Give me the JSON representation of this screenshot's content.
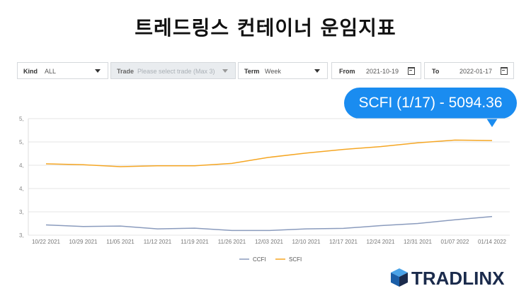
{
  "title": "트레드링스 컨테이너 운임지표",
  "filters": {
    "kind": {
      "label": "Kind",
      "value": "ALL"
    },
    "trade": {
      "label": "Trade",
      "placeholder": "Please select trade (Max 3)"
    },
    "term": {
      "label": "Term",
      "value": "Week"
    },
    "from": {
      "label": "From",
      "value": "2021-10-19"
    },
    "to": {
      "label": "To",
      "value": "2022-01-17"
    }
  },
  "callout": "SCFI (1/17) - 5094.36",
  "logo": "TRADLINX",
  "colors": {
    "ccfi": "#8a9bbd",
    "scfi": "#f5a623",
    "callout": "#1a8cf0"
  },
  "chart_data": {
    "type": "line",
    "categories": [
      "10/22 2021",
      "10/29 2021",
      "11/05 2021",
      "11/12 2021",
      "11/19 2021",
      "11/26 2021",
      "12/03 2021",
      "12/10 2021",
      "12/17 2021",
      "12/24 2021",
      "12/31 2021",
      "01/07 2022",
      "01/14 2022"
    ],
    "y_tick_labels": [
      "5,",
      "5,",
      "4,",
      "4,",
      "3,",
      "3,"
    ],
    "ylim": [
      3000,
      5500
    ],
    "grid": true,
    "legend_position": "bottom",
    "series": [
      {
        "name": "CCFI",
        "color": "#8a9bbd",
        "values": [
          3220,
          3185,
          3195,
          3135,
          3150,
          3100,
          3100,
          3135,
          3145,
          3205,
          3250,
          3330,
          3400
        ]
      },
      {
        "name": "SCFI",
        "color": "#f5a623",
        "values": [
          4530,
          4510,
          4470,
          4490,
          4490,
          4540,
          4670,
          4760,
          4840,
          4900,
          4980,
          5040,
          5030
        ]
      }
    ]
  }
}
